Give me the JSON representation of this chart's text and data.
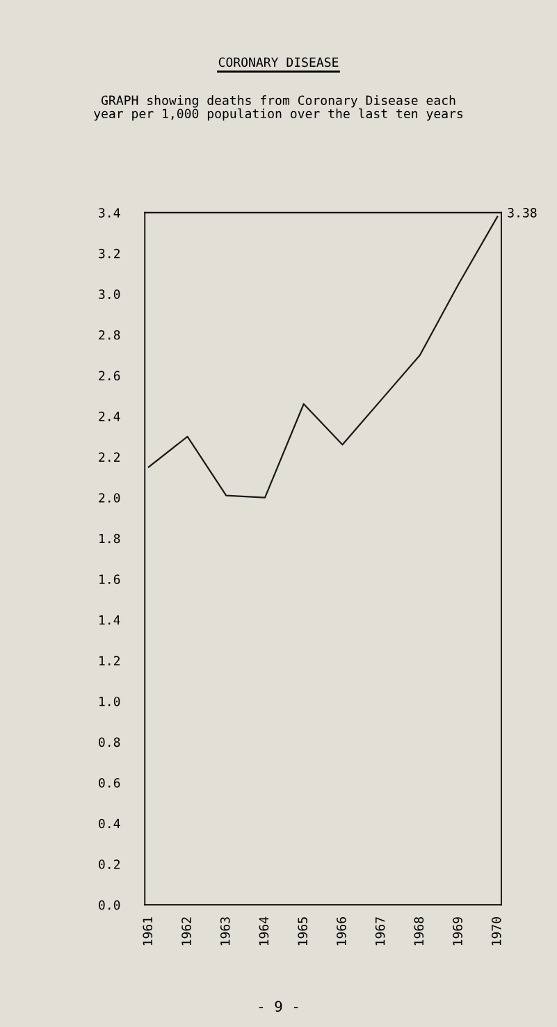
{
  "chart_data": {
    "type": "line",
    "title": "CORONARY DISEASE",
    "subtitle": "GRAPH showing deaths from Coronary Disease each\nyear per 1,000 population over the last ten years",
    "categories": [
      "1961",
      "1962",
      "1963",
      "1964",
      "1965",
      "1966",
      "1967",
      "1968",
      "1969",
      "1970"
    ],
    "series": [
      {
        "color": "#1a1a1a",
        "values": [
          2.15,
          2.3,
          2.01,
          2.0,
          2.46,
          2.26,
          2.48,
          2.7,
          3.05,
          3.38
        ]
      }
    ],
    "ylim": [
      0,
      3.4
    ],
    "yticks": [
      {
        "value": 0,
        "label": "0.0"
      },
      0.2,
      0.4,
      0.6,
      0.8,
      {
        "value": 1,
        "label": "1.0"
      },
      1.2,
      1.4,
      1.6,
      1.8,
      {
        "value": 2,
        "label": "2.0"
      },
      2.2,
      2.4,
      2.6,
      2.8,
      {
        "value": 3,
        "label": "3.0"
      },
      3.2,
      3.4
    ],
    "annotations": [
      {
        "text": "3.38",
        "x": "1970",
        "y": 3.38
      },
      "- 9 -"
    ],
    "grid": false,
    "legend": false,
    "marker": "none",
    "line_style": "solid"
  }
}
